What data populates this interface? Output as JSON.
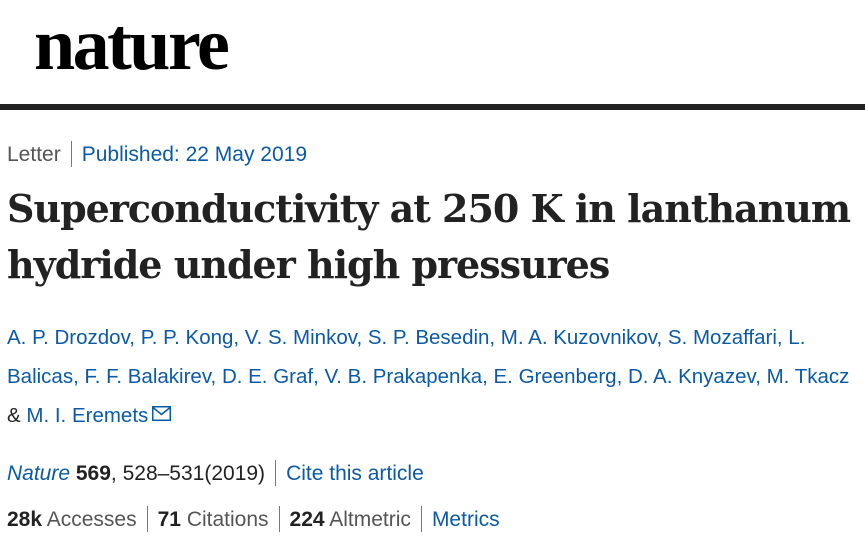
{
  "header": {
    "logo": "nature"
  },
  "article": {
    "type": "Letter",
    "published": "Published: 22 May 2019",
    "title": "Superconductivity at 250 K in lanthanum hydride under high pressures",
    "authors_a": "A. P. Drozdov, P. P. Kong, V. S. Minkov, S. P. Besedin, M. A. Kuzovnikov, S. Mozaffari, L. Balicas, F. F. Balakirev, D. E. Graf, V. B. Prakapenka, E. Greenberg, D. A. Knyazev, M. Tkacz",
    "authors_amp": "&",
    "authors_b": "M. I. Eremets",
    "mail_icon": "mail-icon"
  },
  "citation": {
    "journal": "Nature",
    "volume": "569",
    "pages_year": ", 528–531(2019)",
    "cite_link": "Cite this article"
  },
  "metrics": {
    "accesses_value": "28k",
    "accesses_label": "Accesses",
    "citations_value": "71",
    "citations_label": "Citations",
    "altmetric_value": "224",
    "altmetric_label": "Altmetric",
    "metrics_link": "Metrics"
  }
}
